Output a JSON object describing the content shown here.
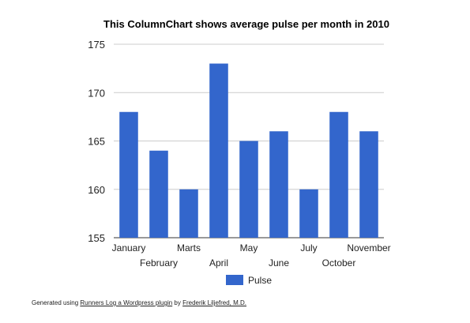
{
  "chart_data": {
    "type": "bar",
    "title": "This ColumnChart shows average pulse per month in 2010",
    "categories": [
      "January",
      "February",
      "Marts",
      "April",
      "May",
      "June",
      "July",
      "October",
      "November"
    ],
    "series": [
      {
        "name": "Pulse",
        "color": "#3366cc",
        "values": [
          168,
          164,
          160,
          173,
          165,
          166,
          160,
          168,
          166
        ]
      }
    ],
    "ylim": [
      155,
      175
    ],
    "yticks": [
      155,
      160,
      165,
      170,
      175
    ],
    "grid": true,
    "legend": "bottom",
    "xlabel": "",
    "ylabel": ""
  },
  "footer": {
    "prefix": "Generated using ",
    "link1": "Runners Log a Wordpress plugin",
    "middle": " by ",
    "link2": "Frederik Liljefred, M.D."
  }
}
